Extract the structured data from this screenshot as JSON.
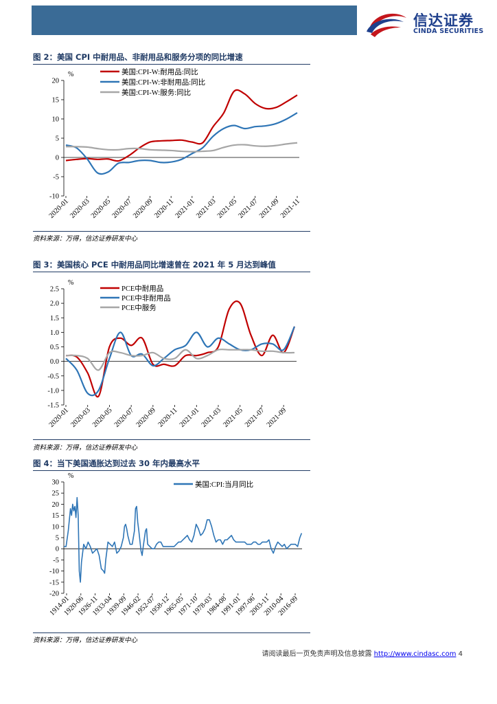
{
  "header": {
    "logo_name": "信达证券",
    "logo_sub": "CINDA SECURITIES",
    "brand_colors": {
      "banner": "#3a6b96",
      "logo_blue": "#1e3f8c",
      "logo_red": "#c4161c"
    }
  },
  "figure2": {
    "title": "图 2：美国 CPI 中耐用品、非耐用品和服务分项的同比增速",
    "source": "资料来源：万得，信达证券研发中心",
    "chart_data": {
      "type": "line",
      "ylabel": "%",
      "ylim": [
        -10,
        20
      ],
      "yticks": [
        "20",
        "15",
        "10",
        "5",
        "0",
        "-5",
        "-10"
      ],
      "categories": [
        "2020-01",
        "2020-02",
        "2020-03",
        "2020-04",
        "2020-05",
        "2020-06",
        "2020-07",
        "2020-08",
        "2020-09",
        "2020-10",
        "2020-11",
        "2020-12",
        "2021-01",
        "2021-02",
        "2021-03",
        "2021-04",
        "2021-05",
        "2021-06",
        "2021-07",
        "2021-08",
        "2021-09",
        "2021-10",
        "2021-11"
      ],
      "tick_labels": [
        "2020-01",
        "2020-03",
        "2020-05",
        "2020-07",
        "2020-09",
        "2020-11",
        "2021-01",
        "2021-03",
        "2021-05",
        "2021-07",
        "2021-09",
        "2021-11"
      ],
      "series": [
        {
          "name": "美国:CPI-W:耐用品:同比",
          "color": "#c00000",
          "values": [
            -0.8,
            -0.5,
            -0.3,
            -0.5,
            -0.4,
            -0.9,
            0.5,
            2.5,
            4.0,
            4.3,
            4.4,
            4.5,
            4.0,
            3.8,
            8.0,
            11.5,
            17.2,
            16.5,
            14.0,
            12.7,
            13.0,
            14.5,
            16.2
          ]
        },
        {
          "name": "美国:CPI-W:非耐用品:同比",
          "color": "#2e75b6",
          "values": [
            3.2,
            2.5,
            -0.3,
            -4.0,
            -3.8,
            -1.5,
            -1.3,
            -0.8,
            -0.8,
            -1.3,
            -1.2,
            -0.5,
            1.0,
            2.5,
            5.5,
            7.5,
            8.3,
            7.5,
            8.0,
            8.2,
            8.8,
            10.0,
            11.6
          ]
        },
        {
          "name": "美国:CPI-W:服务:同比",
          "color": "#a6a6a6",
          "values": [
            2.8,
            2.8,
            2.7,
            2.3,
            2.0,
            2.0,
            2.3,
            2.3,
            2.0,
            1.9,
            1.8,
            1.6,
            1.5,
            1.6,
            1.8,
            2.6,
            3.2,
            3.3,
            3.0,
            2.9,
            3.1,
            3.5,
            3.8
          ]
        }
      ]
    }
  },
  "figure3": {
    "title": "图 3：美国核心 PCE 中耐用品同比增速曾在 2021 年 5 月达到峰值",
    "source": "资料来源：万得，信达证券研发中心",
    "chart_data": {
      "type": "line",
      "ylabel": "%",
      "ylim": [
        -1.5,
        2.5
      ],
      "yticks": [
        "2.5",
        "2.0",
        "1.5",
        "1.0",
        "0.5",
        "0.0",
        "-0.5",
        "-1.0",
        "-1.5"
      ],
      "categories": [
        "2020-01",
        "2020-02",
        "2020-03",
        "2020-04",
        "2020-05",
        "2020-06",
        "2020-07",
        "2020-08",
        "2020-09",
        "2020-10",
        "2020-11",
        "2020-12",
        "2021-01",
        "2021-02",
        "2021-03",
        "2021-04",
        "2021-05",
        "2021-06",
        "2021-07",
        "2021-08",
        "2021-09",
        "2021-10"
      ],
      "tick_labels": [
        "2020-01",
        "2020-03",
        "2020-05",
        "2020-07",
        "2020-09",
        "2020-11",
        "2021-01",
        "2021-03",
        "2021-05",
        "2021-07",
        "2021-09"
      ],
      "series": [
        {
          "name": "PCE中耐用品",
          "color": "#c00000",
          "values": [
            0.2,
            0.15,
            -0.4,
            -1.2,
            0.5,
            0.8,
            0.55,
            0.8,
            -0.1,
            -0.1,
            -0.15,
            0.2,
            0.2,
            0.3,
            0.5,
            1.8,
            2.0,
            0.9,
            0.2,
            0.9,
            0.3,
            1.2
          ]
        },
        {
          "name": "PCE中非耐用品",
          "color": "#2e75b6",
          "values": [
            0.1,
            -0.3,
            -1.1,
            -1.0,
            0.1,
            1.0,
            0.2,
            0.25,
            -0.15,
            0.1,
            0.4,
            0.55,
            1.0,
            0.5,
            0.8,
            0.6,
            0.4,
            0.4,
            0.6,
            0.6,
            0.4,
            1.2
          ]
        },
        {
          "name": "PCE中服务",
          "color": "#a6a6a6",
          "values": [
            0.2,
            0.2,
            0.1,
            -0.3,
            0.3,
            0.3,
            0.2,
            0.2,
            0.3,
            0.1,
            0.1,
            0.4,
            0.1,
            0.2,
            0.4,
            0.4,
            0.4,
            0.4,
            0.35,
            0.35,
            0.3,
            0.3
          ]
        }
      ]
    }
  },
  "figure4": {
    "title": "图 4：当下美国通胀达到过去 30 年内最高水平",
    "source": "资料来源：万得，信达证券研发中心",
    "chart_data": {
      "type": "line",
      "ylabel": "%",
      "ylim": [
        -20,
        30
      ],
      "yticks": [
        "30",
        "25",
        "20",
        "15",
        "10",
        "5",
        "0",
        "-5",
        "-10",
        "-15",
        "-20"
      ],
      "tick_labels": [
        "1914-01",
        "1920-06",
        "1926-11",
        "1933-04",
        "1939-09",
        "1946-02",
        "1952-07",
        "1958-12",
        "1965-05",
        "1971-10",
        "1978-03",
        "1984-08",
        "1991-01",
        "1997-06",
        "2003-11",
        "2010-04",
        "2016-09"
      ],
      "x_range": [
        1914,
        2022
      ],
      "series": [
        {
          "name": "美国:CPI:当月同比",
          "color": "#2e75b6",
          "x": [
            1914,
            1915,
            1916,
            1917,
            1917.5,
            1918,
            1918.5,
            1919,
            1919.5,
            1920,
            1920.5,
            1921,
            1921.5,
            1922,
            1923,
            1924,
            1925,
            1926,
            1927,
            1928,
            1929,
            1930,
            1931,
            1932,
            1932.5,
            1933,
            1934,
            1935,
            1936,
            1937,
            1938,
            1939,
            1940,
            1941,
            1941.5,
            1942,
            1942.5,
            1943,
            1944,
            1945,
            1946,
            1946.5,
            1947,
            1947.5,
            1948,
            1949,
            1949.5,
            1950,
            1951,
            1951.5,
            1952,
            1953,
            1954,
            1955,
            1956,
            1957,
            1958,
            1959,
            1960,
            1961,
            1962,
            1963,
            1964,
            1965,
            1966,
            1967,
            1968,
            1969,
            1970,
            1971,
            1972,
            1973,
            1974,
            1975,
            1976,
            1977,
            1978,
            1979,
            1980,
            1981,
            1982,
            1983,
            1984,
            1985,
            1986,
            1987,
            1988,
            1989,
            1990,
            1991,
            1992,
            1993,
            1994,
            1995,
            1996,
            1997,
            1998,
            1999,
            2000,
            2001,
            2002,
            2003,
            2004,
            2005,
            2006,
            2007,
            2008,
            2009,
            2010,
            2011,
            2012,
            2013,
            2014,
            2015,
            2016,
            2017,
            2018,
            2019,
            2020,
            2021,
            2021.8
          ],
          "values": [
            1,
            1,
            8,
            18,
            15,
            20,
            17,
            19,
            14,
            23,
            15,
            -10,
            -15,
            -6,
            2,
            0,
            3,
            1,
            -2,
            -1,
            0,
            -3,
            -9,
            -10,
            -11,
            -5,
            3,
            2,
            1,
            3,
            -2,
            -1,
            1,
            5,
            10,
            11,
            9,
            6,
            2,
            2,
            8,
            18,
            19,
            12,
            8,
            -1,
            -3,
            1,
            8,
            9,
            2,
            1,
            0,
            0,
            2,
            3,
            3,
            1,
            1,
            1,
            1,
            1,
            1,
            2,
            3,
            3,
            4,
            5,
            6,
            4,
            3,
            6,
            11,
            9,
            6,
            7,
            9,
            13,
            13,
            10,
            6,
            3,
            4,
            4,
            2,
            4,
            4,
            5,
            6,
            4,
            3,
            3,
            3,
            3,
            3,
            2,
            2,
            2,
            3,
            3,
            2,
            2,
            3,
            3,
            3,
            4,
            0,
            -2,
            1,
            3,
            2,
            1,
            2,
            0,
            1,
            2,
            2,
            2,
            1,
            5,
            7
          ]
        }
      ]
    }
  },
  "footer": {
    "text": "请阅读最后一页免责声明及信息披露",
    "link": "http://www.cindasc.com",
    "page": "4"
  }
}
